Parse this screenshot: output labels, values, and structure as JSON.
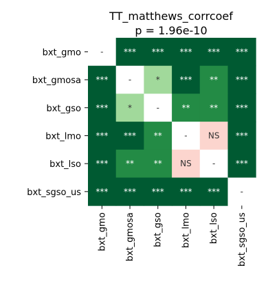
{
  "chart_data": {
    "type": "heatmap",
    "title": "TT_matthews_corrcoef",
    "subtitle": "p = 1.96e-10",
    "row_labels": [
      "bxt_gmo",
      "bxt_gmosa",
      "bxt_gso",
      "bxt_lmo",
      "bxt_lso",
      "bxt_sgso_us"
    ],
    "col_labels": [
      "bxt_gmo",
      "bxt_gmosa",
      "bxt_gso",
      "bxt_lmo",
      "bxt_lso",
      "bxt_sgso_us"
    ],
    "cells": [
      [
        "-",
        "***",
        "***",
        "***",
        "***",
        "***"
      ],
      [
        "***",
        "-",
        "*",
        "***",
        "**",
        "***"
      ],
      [
        "***",
        "*",
        "-",
        "**",
        "**",
        "***"
      ],
      [
        "***",
        "***",
        "**",
        "-",
        "NS",
        "***"
      ],
      [
        "***",
        "**",
        "**",
        "NS",
        "-",
        "***"
      ],
      [
        "***",
        "***",
        "***",
        "***",
        "***",
        "-"
      ]
    ],
    "significance_colors": {
      "***": "#005a32",
      "**": "#238b45",
      "*": "#a1d99b",
      "NS": "#fcd5ce",
      "-": "#ffffff"
    },
    "text_colors": {
      "***": "#ffffff",
      "**": "#ffffff",
      "*": "#333333",
      "NS": "#333333",
      "-": "#333333"
    },
    "grid": false,
    "legend": "none"
  }
}
